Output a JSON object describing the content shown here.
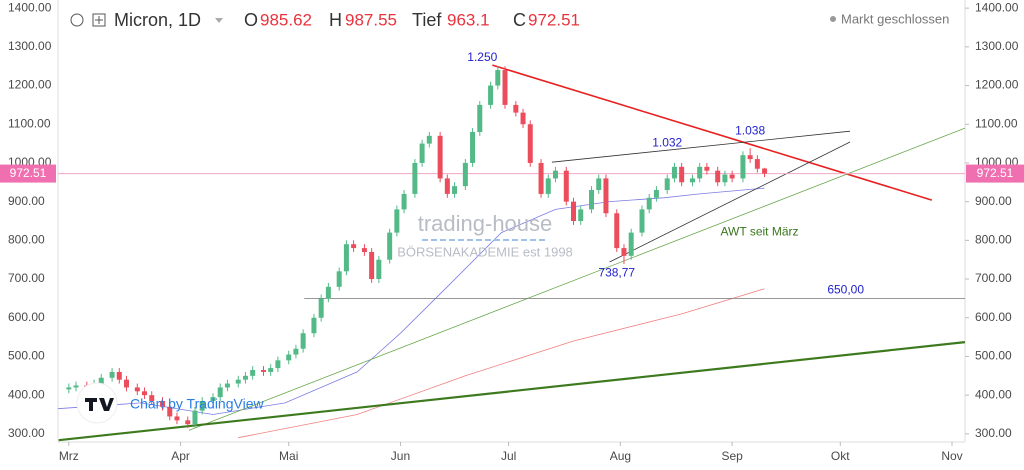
{
  "chart_data": {
    "type": "candlestick",
    "title": "Micron, 1D",
    "ohlc_labels": [
      "O",
      "H",
      "Tief",
      "C"
    ],
    "status": "Markt geschlossen",
    "watermark": "trading-house",
    "watermark_sub": "BÖRSENAKADEMIE est 1998",
    "credit": "Chart by TradingView",
    "up_color": "#53b987",
    "down_color": "#eb4d5c",
    "x": [
      0,
      2,
      5,
      7,
      9,
      12,
      14,
      16,
      19,
      21,
      23,
      26,
      28,
      30,
      33,
      35,
      37,
      40,
      42,
      44,
      47,
      49,
      51,
      54,
      56,
      58,
      61,
      63,
      65,
      68,
      70,
      72,
      75,
      77,
      79,
      82,
      84,
      86,
      89,
      91,
      93,
      96,
      98,
      100,
      103,
      105,
      107,
      110,
      112,
      114,
      117,
      119,
      121,
      124,
      126,
      128,
      131,
      133,
      135,
      138,
      140,
      142,
      145,
      147,
      149,
      152,
      154,
      156,
      159,
      161,
      163,
      166,
      168,
      170,
      173,
      175,
      177,
      180,
      182,
      184,
      187,
      189,
      191,
      193
    ],
    "open": [
      415,
      420,
      425,
      410,
      430,
      445,
      460,
      440,
      420,
      410,
      400,
      385,
      370,
      345,
      335,
      325,
      360,
      385,
      395,
      420,
      430,
      440,
      450,
      465,
      460,
      470,
      490,
      505,
      520,
      560,
      600,
      650,
      680,
      720,
      790,
      780,
      770,
      700,
      750,
      820,
      880,
      920,
      1000,
      1050,
      1070,
      960,
      920,
      940,
      1000,
      1080,
      1150,
      1200,
      1240,
      1150,
      1130,
      1100,
      1000,
      920,
      960,
      980,
      900,
      850,
      880,
      930,
      960,
      870,
      780,
      760,
      820,
      880,
      910,
      930,
      960,
      990,
      950,
      960,
      990,
      980,
      950,
      970,
      960,
      1020,
      1010,
      985.62
    ],
    "high": [
      430,
      435,
      435,
      440,
      455,
      470,
      470,
      450,
      430,
      420,
      410,
      395,
      380,
      355,
      345,
      370,
      395,
      405,
      430,
      440,
      450,
      460,
      475,
      475,
      480,
      500,
      515,
      530,
      570,
      610,
      660,
      690,
      730,
      800,
      800,
      790,
      780,
      760,
      830,
      890,
      930,
      1010,
      1060,
      1080,
      1080,
      970,
      950,
      1010,
      1090,
      1160,
      1210,
      1250,
      1250,
      1160,
      1140,
      1110,
      1010,
      970,
      990,
      990,
      910,
      890,
      940,
      970,
      970,
      880,
      790,
      830,
      890,
      920,
      940,
      970,
      1000,
      1000,
      970,
      1000,
      1000,
      990,
      980,
      980,
      1030,
      1038,
      1020,
      987.55
    ],
    "low": [
      405,
      410,
      400,
      400,
      420,
      435,
      430,
      410,
      400,
      390,
      375,
      360,
      335,
      325,
      315,
      315,
      350,
      375,
      385,
      410,
      420,
      430,
      440,
      450,
      450,
      460,
      480,
      495,
      510,
      550,
      590,
      640,
      670,
      710,
      770,
      760,
      690,
      690,
      740,
      810,
      870,
      910,
      990,
      1040,
      950,
      910,
      910,
      930,
      990,
      1070,
      1140,
      1190,
      1140,
      1120,
      1090,
      990,
      910,
      910,
      950,
      890,
      840,
      840,
      870,
      920,
      860,
      770,
      738.77,
      750,
      810,
      870,
      900,
      920,
      950,
      940,
      940,
      950,
      970,
      940,
      940,
      950,
      950,
      1000,
      975,
      963.1
    ],
    "close": [
      420,
      425,
      410,
      430,
      445,
      460,
      440,
      420,
      410,
      400,
      385,
      370,
      345,
      335,
      325,
      360,
      385,
      395,
      420,
      430,
      440,
      450,
      465,
      460,
      470,
      490,
      505,
      520,
      560,
      600,
      650,
      680,
      720,
      790,
      780,
      770,
      700,
      750,
      820,
      880,
      920,
      1000,
      1050,
      1070,
      960,
      920,
      940,
      1000,
      1080,
      1150,
      1200,
      1240,
      1150,
      1130,
      1100,
      1000,
      920,
      960,
      980,
      900,
      850,
      880,
      930,
      960,
      870,
      780,
      760,
      820,
      880,
      910,
      930,
      960,
      990,
      950,
      960,
      990,
      980,
      950,
      970,
      960,
      1020,
      1010,
      985,
      972.51
    ],
    "moving_averages": [
      {
        "color": "#7b7be6",
        "x": [
          -3,
          20,
          40,
          60,
          80,
          92,
          105,
          120,
          135,
          150,
          165,
          175,
          193
        ],
        "values": [
          365,
          380,
          350,
          380,
          460,
          560,
          680,
          820,
          880,
          900,
          910,
          920,
          935
        ]
      },
      {
        "color": "#f08080",
        "x": [
          47,
          80,
          110,
          140,
          170,
          193
        ],
        "values": [
          290,
          350,
          450,
          540,
          610,
          675
        ]
      }
    ],
    "trendlines": [
      {
        "color": "#e8201f",
        "width": 1.6,
        "x": [
          117.5,
          239.4
        ],
        "values": [
          1252.7,
          904
        ]
      },
      {
        "color": "#333333",
        "width": 0.8,
        "x": [
          134,
          216.7
        ],
        "values": [
          1002,
          1082
        ]
      },
      {
        "color": "#333333",
        "width": 0.8,
        "x": [
          150,
          216.7
        ],
        "values": [
          744,
          1054
        ]
      },
      {
        "color": "#6aa84f",
        "width": 0.8,
        "x": [
          33.3,
          248.6
        ],
        "values": [
          309,
          1090
        ]
      },
      {
        "color": "#3d7a1e",
        "width": 2.2,
        "x": [
          -2.8,
          248.6
        ],
        "values": [
          283.7,
          537
        ]
      },
      {
        "color": "#777777",
        "width": 0.8,
        "x": [
          65.3,
          248.6
        ],
        "values": [
          650,
          650
        ]
      }
    ],
    "annotations": [
      {
        "text": "1.250",
        "x": 114.7,
        "y": 1271,
        "color": "#2222cc"
      },
      {
        "text": "1.032",
        "x": 166,
        "y": 1051,
        "color": "#2222cc"
      },
      {
        "text": "1.038",
        "x": 189,
        "y": 1082,
        "color": "#2222cc"
      },
      {
        "text": "738,77",
        "x": 152,
        "y": 715,
        "color": "#2222cc"
      },
      {
        "text": "650,00",
        "x": 215.5,
        "y": 671,
        "color": "#2222cc"
      },
      {
        "text": "AWT seit März",
        "x": 191.6,
        "y": 821,
        "color": "#38761d"
      }
    ],
    "xlim": [
      -3,
      248.6
    ],
    "xticks": [
      {
        "value": 0,
        "label": "Mrz"
      },
      {
        "value": 31,
        "label": "Apr"
      },
      {
        "value": 61,
        "label": "Mai"
      },
      {
        "value": 92,
        "label": "Jun"
      },
      {
        "value": 122,
        "label": "Jul"
      },
      {
        "value": 153,
        "label": "Aug"
      },
      {
        "value": 184,
        "label": "Sep"
      },
      {
        "value": 214,
        "label": "Okt"
      },
      {
        "value": 245,
        "label": "Nov"
      }
    ],
    "ylim": [
      279,
      1421
    ],
    "yticks": [
      {
        "value": 300,
        "label": "300.00"
      },
      {
        "value": 400,
        "label": "400.00"
      },
      {
        "value": 500,
        "label": "500.00"
      },
      {
        "value": 600,
        "label": "600.00"
      },
      {
        "value": 700,
        "label": "700.00"
      },
      {
        "value": 800,
        "label": "800.00"
      },
      {
        "value": 900,
        "label": "900.00"
      },
      {
        "value": 1000,
        "label": "1000.00"
      },
      {
        "value": 1100,
        "label": "1100.00"
      },
      {
        "value": 1200,
        "label": "1200.00"
      },
      {
        "value": 1300,
        "label": "1300.00"
      },
      {
        "value": 1400,
        "label": "1400.00"
      }
    ],
    "grid": false
  }
}
